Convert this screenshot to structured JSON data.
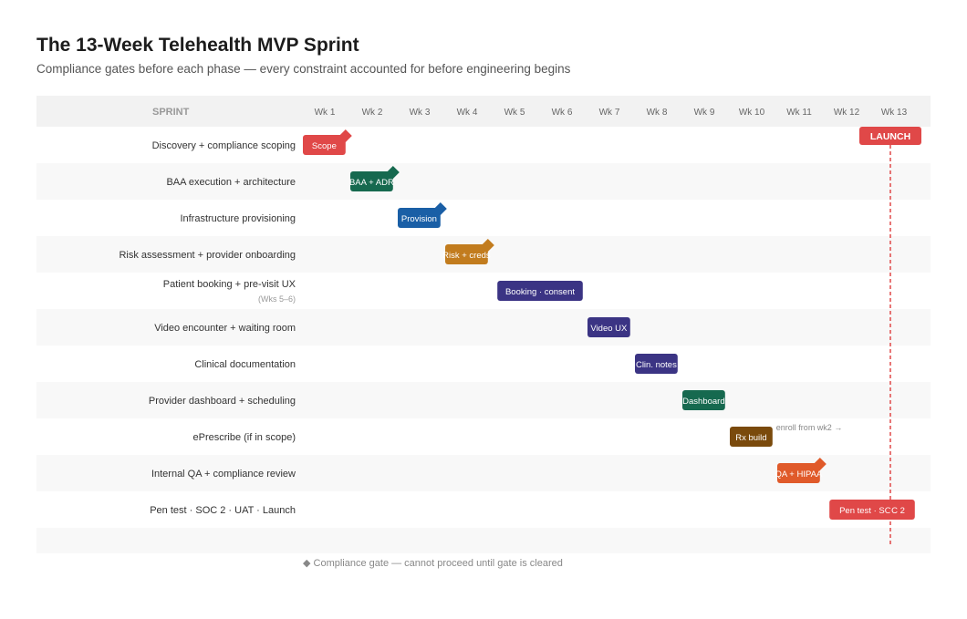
{
  "title": "The 13-Week Telehealth MVP Sprint",
  "subtitle": "Compliance gates before each phase — every constraint accounted for before engineering begins",
  "legend_text": "◆ Compliance gate — cannot proceed until gate is cleared",
  "chart_data": {
    "type": "gantt",
    "header_label": "SPRINT",
    "weeks": [
      "Wk 1",
      "Wk 2",
      "Wk 3",
      "Wk 4",
      "Wk 5",
      "Wk 6",
      "Wk 7",
      "Wk 8",
      "Wk 9",
      "Wk 10",
      "Wk 11",
      "Wk 12",
      "Wk 13"
    ],
    "launch_label": "LAUNCH",
    "launch_week": 13,
    "rows": [
      {
        "name": "Discovery + compliance scoping",
        "bar": "Scope",
        "start": 1,
        "end": 1.9,
        "color": "#e04848",
        "gate": true
      },
      {
        "name": "BAA execution + architecture",
        "bar": "BAA + ADR",
        "start": 2,
        "end": 2.9,
        "color": "#16694f",
        "gate": true
      },
      {
        "name": "Infrastructure provisioning",
        "bar": "Provision",
        "start": 3,
        "end": 3.9,
        "color": "#1a5fa6",
        "gate": true
      },
      {
        "name": "Risk assessment + provider onboarding",
        "bar": "Risk + creds",
        "start": 4,
        "end": 4.9,
        "color": "#c27c1e",
        "gate": true
      },
      {
        "name": "Patient booking + pre-visit UX",
        "sublabel": "(Wks 5–6)",
        "bar": "Booking · consent",
        "start": 5.1,
        "end": 6.9,
        "color": "#3b3484",
        "gate": false
      },
      {
        "name": "Video encounter + waiting room",
        "bar": "Video UX",
        "start": 7,
        "end": 7.9,
        "color": "#3b3484",
        "gate": false
      },
      {
        "name": "Clinical documentation",
        "bar": "Clin. notes",
        "start": 8,
        "end": 8.9,
        "color": "#3b3484",
        "gate": false
      },
      {
        "name": "Provider dashboard + scheduling",
        "bar": "Dashboard",
        "start": 9,
        "end": 9.9,
        "color": "#16694f",
        "gate": false
      },
      {
        "name": "ePrescribe (if in scope)",
        "bar": "Rx build",
        "start": 10,
        "end": 10.9,
        "color": "#7a4a0c",
        "gate": false,
        "note": "enroll from wk2 →"
      },
      {
        "name": "Internal QA + compliance review",
        "bar": "QA + HIPAA",
        "start": 11,
        "end": 11.9,
        "color": "#e05a2a",
        "gate": true
      },
      {
        "name": "Pen test · SOC 2 · UAT · Launch",
        "bar": "Pen test · SOC 2",
        "start": 12.1,
        "end": 13.9,
        "color": "#e04848",
        "gate": false
      }
    ]
  }
}
